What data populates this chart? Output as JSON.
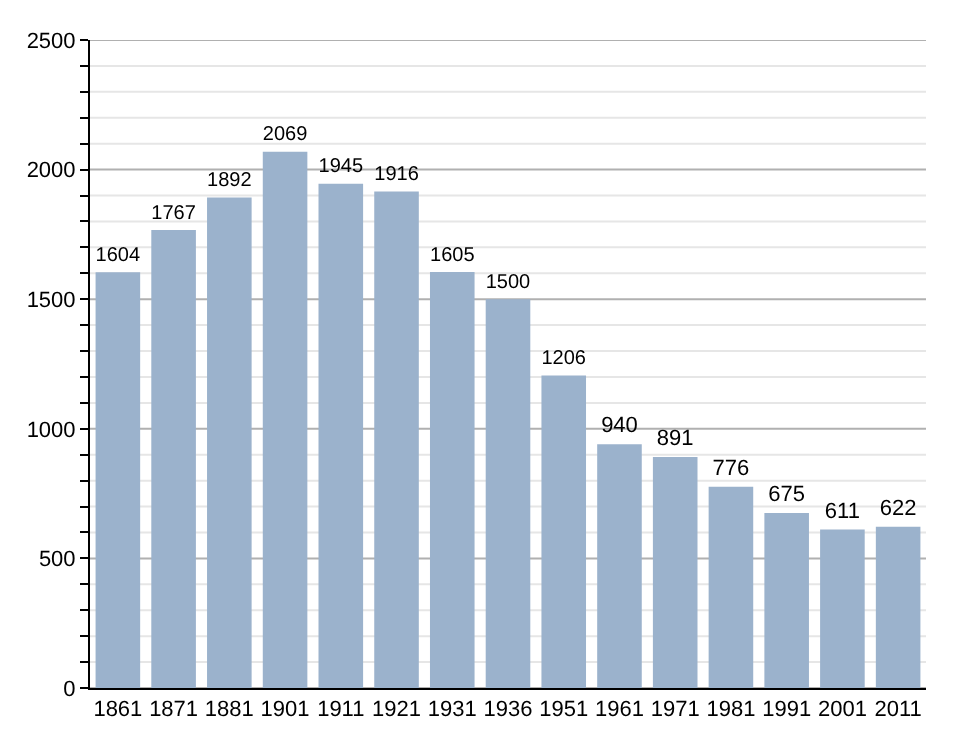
{
  "chart_data": {
    "type": "bar",
    "categories": [
      "1861",
      "1871",
      "1881",
      "1901",
      "1911",
      "1921",
      "1931",
      "1936",
      "1951",
      "1961",
      "1971",
      "1981",
      "1991",
      "2001",
      "2011"
    ],
    "values": [
      1604,
      1767,
      1892,
      2069,
      1945,
      1916,
      1605,
      1500,
      1206,
      940,
      891,
      776,
      675,
      611,
      622
    ],
    "color": "#9bb2cc",
    "data_labels": true,
    "ylim": [
      0,
      2500
    ],
    "yticks": [
      0,
      {
        "value": 100,
        "label": null
      },
      {
        "value": 200,
        "label": null
      },
      {
        "value": 300,
        "label": null
      },
      {
        "value": 400,
        "label": null
      },
      500,
      {
        "value": 600,
        "label": null
      },
      {
        "value": 700,
        "label": null
      },
      {
        "value": 800,
        "label": null
      },
      {
        "value": 900,
        "label": null
      },
      1000,
      {
        "value": 1100,
        "label": null
      },
      {
        "value": 1200,
        "label": null
      },
      {
        "value": 1300,
        "label": null
      },
      {
        "value": 1400,
        "label": null
      },
      1500,
      {
        "value": 1600,
        "label": null
      },
      {
        "value": 1700,
        "label": null
      },
      {
        "value": 1800,
        "label": null
      },
      {
        "value": 1900,
        "label": null
      },
      2000,
      {
        "value": 2100,
        "label": null
      },
      {
        "value": 2200,
        "label": null
      },
      {
        "value": 2300,
        "label": null
      },
      {
        "value": 2400,
        "label": null
      },
      2500
    ],
    "grid": "y"
  }
}
